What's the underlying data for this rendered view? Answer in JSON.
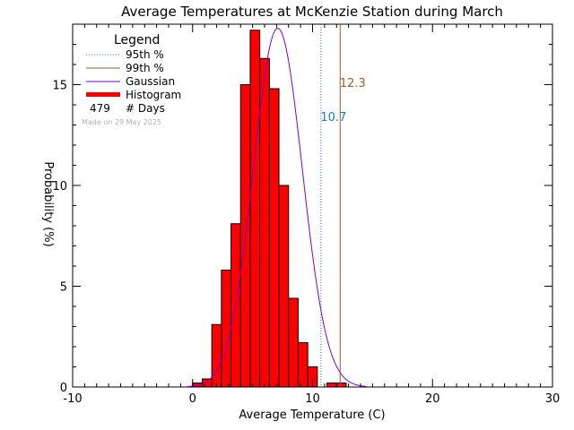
{
  "colors": {
    "bar_fill": "#ff0000",
    "bar_stroke": "#000000",
    "p95": "#1a7fc1",
    "p99": "#9a5b2a",
    "gaussian": "#7a00d9",
    "watermark": "#b3b3b3"
  },
  "chart_data": {
    "type": "bar",
    "title": "Average Temperatures at McKenzie Station during March",
    "xlabel": "Average Temperature (C)",
    "ylabel": "Probability (%)",
    "xlim": [
      -10,
      30
    ],
    "ylim": [
      0,
      18
    ],
    "xticks": [
      "-10",
      "0",
      "10",
      "20",
      "30"
    ],
    "yticks": [
      "0",
      "5",
      "10",
      "15"
    ],
    "bin_width": 0.8,
    "bins": [
      {
        "x0": 0.0,
        "value": 0.2
      },
      {
        "x0": 0.8,
        "value": 0.4
      },
      {
        "x0": 1.6,
        "value": 3.1
      },
      {
        "x0": 2.4,
        "value": 5.8
      },
      {
        "x0": 3.2,
        "value": 8.1
      },
      {
        "x0": 4.0,
        "value": 15.0
      },
      {
        "x0": 4.8,
        "value": 17.7
      },
      {
        "x0": 5.6,
        "value": 16.3
      },
      {
        "x0": 6.4,
        "value": 14.8
      },
      {
        "x0": 7.2,
        "value": 10.0
      },
      {
        "x0": 8.0,
        "value": 4.4
      },
      {
        "x0": 8.8,
        "value": 2.2
      },
      {
        "x0": 9.6,
        "value": 1.0
      },
      {
        "x0": 10.4,
        "value": 0.0
      },
      {
        "x0": 11.2,
        "value": 0.2
      },
      {
        "x0": 12.0,
        "value": 0.2
      }
    ],
    "gaussian": {
      "mean": 7.1,
      "sigma": 2.05,
      "peak": 17.8,
      "label": "Gaussian"
    },
    "percentile_95": {
      "value": 10.7,
      "label": "10.7",
      "legend": "95th %"
    },
    "percentile_99": {
      "value": 12.3,
      "label": "12.3",
      "legend": "99th %"
    },
    "legend": {
      "title": "Legend",
      "histogram": "Histogram",
      "days_count": "479",
      "days_label": "# Days",
      "placement": "top-left"
    },
    "watermark": "Made on 29 May 2025"
  }
}
